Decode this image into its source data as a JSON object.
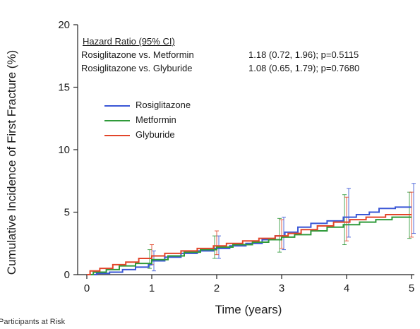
{
  "chart_data": {
    "type": "line",
    "ylabel": "Cumulative Incidence of First Fracture (%)",
    "xlabel": "Time (years)",
    "xlim": [
      0,
      5
    ],
    "ylim": [
      0,
      20
    ],
    "x_ticks": [
      "0",
      "1",
      "2",
      "3",
      "4",
      "5"
    ],
    "y_ticks": [
      "0",
      "5",
      "10",
      "15",
      "20"
    ],
    "grid": false,
    "legend_placement": "upper-left",
    "hazard_ratio": {
      "title": "Hazard Ratio (95% CI)",
      "rows": [
        {
          "label": "Rosiglitazone vs. Metformin",
          "value": "1.18 (0.72, 1.96); p=0.5115"
        },
        {
          "label": "Rosiglitazone vs. Glyburide",
          "value": "1.08 (0.65, 1.79); p=0.7680"
        }
      ]
    },
    "series": [
      {
        "name": "Rosiglitazone",
        "color": "#3a57d6",
        "steps": [
          [
            0,
            0
          ],
          [
            0.15,
            0.1
          ],
          [
            0.35,
            0.2
          ],
          [
            0.55,
            0.4
          ],
          [
            0.75,
            0.6
          ],
          [
            0.95,
            0.8
          ],
          [
            1.0,
            1.1
          ],
          [
            1.2,
            1.4
          ],
          [
            1.45,
            1.7
          ],
          [
            1.7,
            1.9
          ],
          [
            1.95,
            2.1
          ],
          [
            2.2,
            2.3
          ],
          [
            2.45,
            2.5
          ],
          [
            2.7,
            2.8
          ],
          [
            2.9,
            3.1
          ],
          [
            3.05,
            3.4
          ],
          [
            3.25,
            3.8
          ],
          [
            3.45,
            4.1
          ],
          [
            3.7,
            4.3
          ],
          [
            3.95,
            4.6
          ],
          [
            4.15,
            4.8
          ],
          [
            4.35,
            5.0
          ],
          [
            4.5,
            5.3
          ],
          [
            4.75,
            5.4
          ],
          [
            5.0,
            5.4
          ]
        ],
        "ci": [
          {
            "x": 1,
            "lo": 0.3,
            "hi": 1.9
          },
          {
            "x": 2,
            "lo": 1.3,
            "hi": 3.1
          },
          {
            "x": 3,
            "lo": 2.0,
            "hi": 4.6
          },
          {
            "x": 4,
            "lo": 3.0,
            "hi": 6.9
          },
          {
            "x": 5,
            "lo": 3.3,
            "hi": 7.3
          }
        ]
      },
      {
        "name": "Metformin",
        "color": "#2f9a3a",
        "steps": [
          [
            0,
            0
          ],
          [
            0.1,
            0.2
          ],
          [
            0.3,
            0.4
          ],
          [
            0.5,
            0.7
          ],
          [
            0.75,
            0.9
          ],
          [
            1.0,
            1.2
          ],
          [
            1.25,
            1.5
          ],
          [
            1.5,
            1.8
          ],
          [
            1.75,
            2.0
          ],
          [
            2.0,
            2.2
          ],
          [
            2.25,
            2.4
          ],
          [
            2.55,
            2.6
          ],
          [
            2.8,
            2.8
          ],
          [
            3.0,
            3.0
          ],
          [
            3.2,
            3.2
          ],
          [
            3.45,
            3.5
          ],
          [
            3.7,
            3.8
          ],
          [
            3.95,
            4.0
          ],
          [
            4.2,
            4.2
          ],
          [
            4.45,
            4.4
          ],
          [
            4.7,
            4.6
          ],
          [
            5.0,
            4.6
          ]
        ],
        "ci": [
          {
            "x": 1,
            "lo": 0.5,
            "hi": 2.0
          },
          {
            "x": 2,
            "lo": 1.3,
            "hi": 3.1
          },
          {
            "x": 3,
            "lo": 1.8,
            "hi": 4.5
          },
          {
            "x": 4,
            "lo": 2.4,
            "hi": 6.4
          },
          {
            "x": 5,
            "lo": 2.9,
            "hi": 6.6
          }
        ]
      },
      {
        "name": "Glyburide",
        "color": "#e2452a",
        "steps": [
          [
            0,
            0
          ],
          [
            0.05,
            0.3
          ],
          [
            0.2,
            0.5
          ],
          [
            0.4,
            0.8
          ],
          [
            0.6,
            1.0
          ],
          [
            0.8,
            1.3
          ],
          [
            1.0,
            1.5
          ],
          [
            1.2,
            1.7
          ],
          [
            1.45,
            1.9
          ],
          [
            1.7,
            2.1
          ],
          [
            1.95,
            2.3
          ],
          [
            2.15,
            2.5
          ],
          [
            2.4,
            2.7
          ],
          [
            2.65,
            2.9
          ],
          [
            2.9,
            3.1
          ],
          [
            3.1,
            3.3
          ],
          [
            3.3,
            3.6
          ],
          [
            3.55,
            3.9
          ],
          [
            3.8,
            4.2
          ],
          [
            4.05,
            4.4
          ],
          [
            4.3,
            4.6
          ],
          [
            4.6,
            4.8
          ],
          [
            5.0,
            4.8
          ]
        ],
        "ci": [
          {
            "x": 1,
            "lo": 0.8,
            "hi": 2.4
          },
          {
            "x": 2,
            "lo": 1.6,
            "hi": 3.5
          },
          {
            "x": 3,
            "lo": 2.1,
            "hi": 4.4
          },
          {
            "x": 4,
            "lo": 2.7,
            "hi": 6.2
          },
          {
            "x": 5,
            "lo": 3.0,
            "hi": 6.6
          }
        ]
      }
    ]
  },
  "footer_text": "Participants at Risk"
}
